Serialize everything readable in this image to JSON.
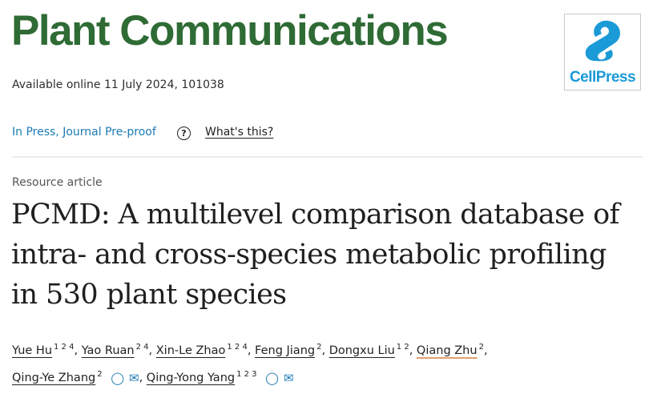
{
  "journal": {
    "name": "Plant Communications",
    "brand_color": "#2f6b35"
  },
  "publisher_logo": {
    "text": "CellPress",
    "color": "#1a9ad6"
  },
  "availability": "Available online 11 July 2024, 101038",
  "status": {
    "label": "In Press, Journal Pre-proof",
    "help_icon": "question-circle-icon",
    "help_link": "What's this?"
  },
  "article": {
    "type": "Resource article",
    "title_lines": [
      "PCMD: A multilevel comparison database of",
      "intra- and cross-species metabolic profiling",
      "in 530 plant species"
    ]
  },
  "authors": [
    {
      "name": "Yue Hu",
      "aff": "1 2 4"
    },
    {
      "name": "Yao Ruan",
      "aff": "2 4"
    },
    {
      "name": "Xin-Le Zhao",
      "aff": "1 2 4"
    },
    {
      "name": "Feng Jiang",
      "aff": "2"
    },
    {
      "name": "Dongxu Liu",
      "aff": "1 2"
    },
    {
      "name": "Qiang Zhu",
      "aff": "2"
    },
    {
      "name": "Qing-Ye Zhang",
      "aff": "2"
    },
    {
      "name": "Qing-Yong Yang",
      "aff": "1 2 3"
    }
  ],
  "separator": ","
}
